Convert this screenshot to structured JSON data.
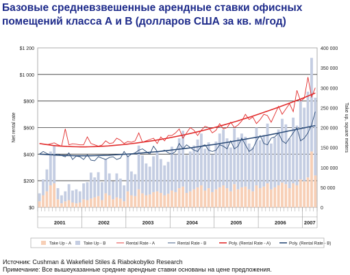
{
  "title": "Базовые средневзвешенные арендные ставки офисных помещений класса А и В (долларов США за кв. м/год)",
  "source": "Источник: Cushman & Wakefield Stiles & Riabokobylko Research",
  "note": "Примечание: Все вышеуказанные средние арендные ставки основаны на цене предложения.",
  "chart_data": {
    "type": "bar+line",
    "ylabel_left": "Net rental rate",
    "ylabel_right": "Take up, square meters",
    "y_left_ticks": [
      "$0",
      "$200",
      "$400",
      "$600",
      "$800",
      "$1 000",
      "$1 200"
    ],
    "y_left_range": [
      0,
      1200
    ],
    "y_right_ticks": [
      "0",
      "50 000",
      "100 000",
      "150 000",
      "200 000",
      "250 000",
      "300 000",
      "350 000",
      "400 000"
    ],
    "y_right_range": [
      0,
      400000
    ],
    "x_year_labels": [
      {
        "label": "2001",
        "start": 0,
        "end": 12
      },
      {
        "label": "2002",
        "start": 12,
        "end": 24
      },
      {
        "label": "2003",
        "start": 24,
        "end": 36
      },
      {
        "label": "2004",
        "start": 36,
        "end": 48
      },
      {
        "label": "2005",
        "start": 48,
        "end": 60
      },
      {
        "label": "2006",
        "start": 60,
        "end": 72
      },
      {
        "label": "2007",
        "start": 72,
        "end": 76
      }
    ],
    "grid": "horizontal",
    "legend_position": "bottom",
    "series": [
      {
        "name": "Take Up - A",
        "type": "bar",
        "axis": "right",
        "color": "#f7cfb6",
        "values": [
          15000,
          30000,
          40000,
          55000,
          60000,
          20000,
          10000,
          15000,
          18000,
          12000,
          10000,
          12000,
          20000,
          18000,
          22000,
          25000,
          28000,
          18000,
          35000,
          30000,
          20000,
          25000,
          22000,
          15000,
          40000,
          30000,
          28000,
          45000,
          35000,
          30000,
          32000,
          38000,
          40000,
          36000,
          30000,
          34000,
          42000,
          38000,
          48000,
          52000,
          36000,
          40000,
          45000,
          50000,
          55000,
          42000,
          48000,
          38000,
          45000,
          50000,
          55000,
          48000,
          40000,
          58000,
          45000,
          50000,
          52000,
          45000,
          40000,
          55000,
          48000,
          52000,
          60000,
          45000,
          50000,
          55000,
          62000,
          58000,
          48000,
          60000,
          55000,
          70000,
          65000,
          75000,
          140000,
          80000
        ]
      },
      {
        "name": "Take Up - B",
        "type": "bar",
        "axis": "right",
        "color": "#c4cde2",
        "values": [
          20000,
          40000,
          55000,
          85000,
          95000,
          28000,
          20000,
          25000,
          40000,
          30000,
          35000,
          28000,
          40000,
          45000,
          65000,
          50000,
          60000,
          45000,
          85000,
          55000,
          45000,
          60000,
          50000,
          40000,
          90000,
          60000,
          55000,
          110000,
          95000,
          80000,
          70000,
          90000,
          100000,
          85000,
          75000,
          80000,
          110000,
          95000,
          125000,
          140000,
          95000,
          100000,
          110000,
          120000,
          130000,
          105000,
          115000,
          95000,
          120000,
          135000,
          140000,
          125000,
          110000,
          140000,
          130000,
          135000,
          125000,
          115000,
          110000,
          145000,
          120000,
          130000,
          150000,
          115000,
          125000,
          140000,
          160000,
          150000,
          125000,
          165000,
          150000,
          200000,
          185000,
          215000,
          235000,
          195000
        ]
      },
      {
        "name": "Rental Rate - A",
        "type": "line",
        "axis": "left",
        "color": "#e12a2a",
        "values": [
          480,
          475,
          470,
          478,
          485,
          470,
          460,
          590,
          470,
          478,
          475,
          470,
          470,
          530,
          480,
          470,
          460,
          468,
          500,
          480,
          485,
          520,
          505,
          480,
          495,
          490,
          500,
          560,
          490,
          500,
          510,
          520,
          480,
          530,
          500,
          540,
          540,
          560,
          590,
          520,
          560,
          600,
          580,
          540,
          580,
          610,
          600,
          560,
          580,
          630,
          590,
          600,
          640,
          600,
          620,
          650,
          700,
          660,
          680,
          630,
          660,
          700,
          690,
          640,
          700,
          760,
          700,
          740,
          780,
          720,
          880,
          800,
          820,
          980,
          830,
          900
        ]
      },
      {
        "name": "Rental Rate - B",
        "type": "line",
        "axis": "left",
        "color": "#2c4c78",
        "values": [
          400,
          420,
          405,
          395,
          395,
          400,
          390,
          380,
          410,
          360,
          385,
          380,
          360,
          395,
          355,
          350,
          380,
          370,
          360,
          375,
          380,
          360,
          370,
          420,
          380,
          400,
          410,
          430,
          440,
          420,
          400,
          460,
          420,
          420,
          430,
          410,
          400,
          420,
          480,
          440,
          470,
          450,
          430,
          420,
          460,
          470,
          430,
          420,
          430,
          470,
          460,
          440,
          500,
          440,
          460,
          520,
          470,
          420,
          440,
          500,
          540,
          480,
          470,
          520,
          530,
          560,
          500,
          480,
          520,
          560,
          600,
          500,
          520,
          560,
          620,
          720
        ]
      },
      {
        "name": "Poly. (Rental Rate - A)",
        "type": "trend",
        "axis": "left",
        "color": "#e12a2a",
        "values": [
          480,
          475,
          470,
          465,
          462,
          460,
          458,
          457,
          456,
          455,
          455,
          456,
          457,
          458,
          460,
          462,
          465,
          468,
          471,
          475,
          479,
          483,
          488,
          493,
          498,
          503,
          509,
          515,
          521,
          528,
          535,
          542,
          549,
          557,
          565,
          573,
          582,
          591,
          600,
          609,
          619,
          629,
          639,
          649,
          660,
          671,
          682,
          693,
          705,
          717,
          729,
          741,
          753,
          766,
          779,
          792,
          805,
          818,
          832,
          846,
          860
        ]
      },
      {
        "name": "Poly. (Rental Rate - B)",
        "type": "trend",
        "axis": "left",
        "color": "#2c4c78",
        "values": [
          400,
          398,
          396,
          394,
          392,
          391,
          390,
          389,
          388,
          388,
          388,
          388,
          389,
          390,
          391,
          392,
          394,
          396,
          398,
          400,
          402,
          405,
          408,
          411,
          414,
          417,
          420,
          424,
          428,
          432,
          436,
          440,
          444,
          448,
          453,
          458,
          463,
          468,
          473,
          478,
          484,
          490,
          496,
          502,
          508,
          514,
          520,
          526,
          532,
          538,
          545,
          552,
          559,
          566,
          573,
          580,
          587,
          594,
          601,
          608,
          615
        ]
      }
    ]
  }
}
